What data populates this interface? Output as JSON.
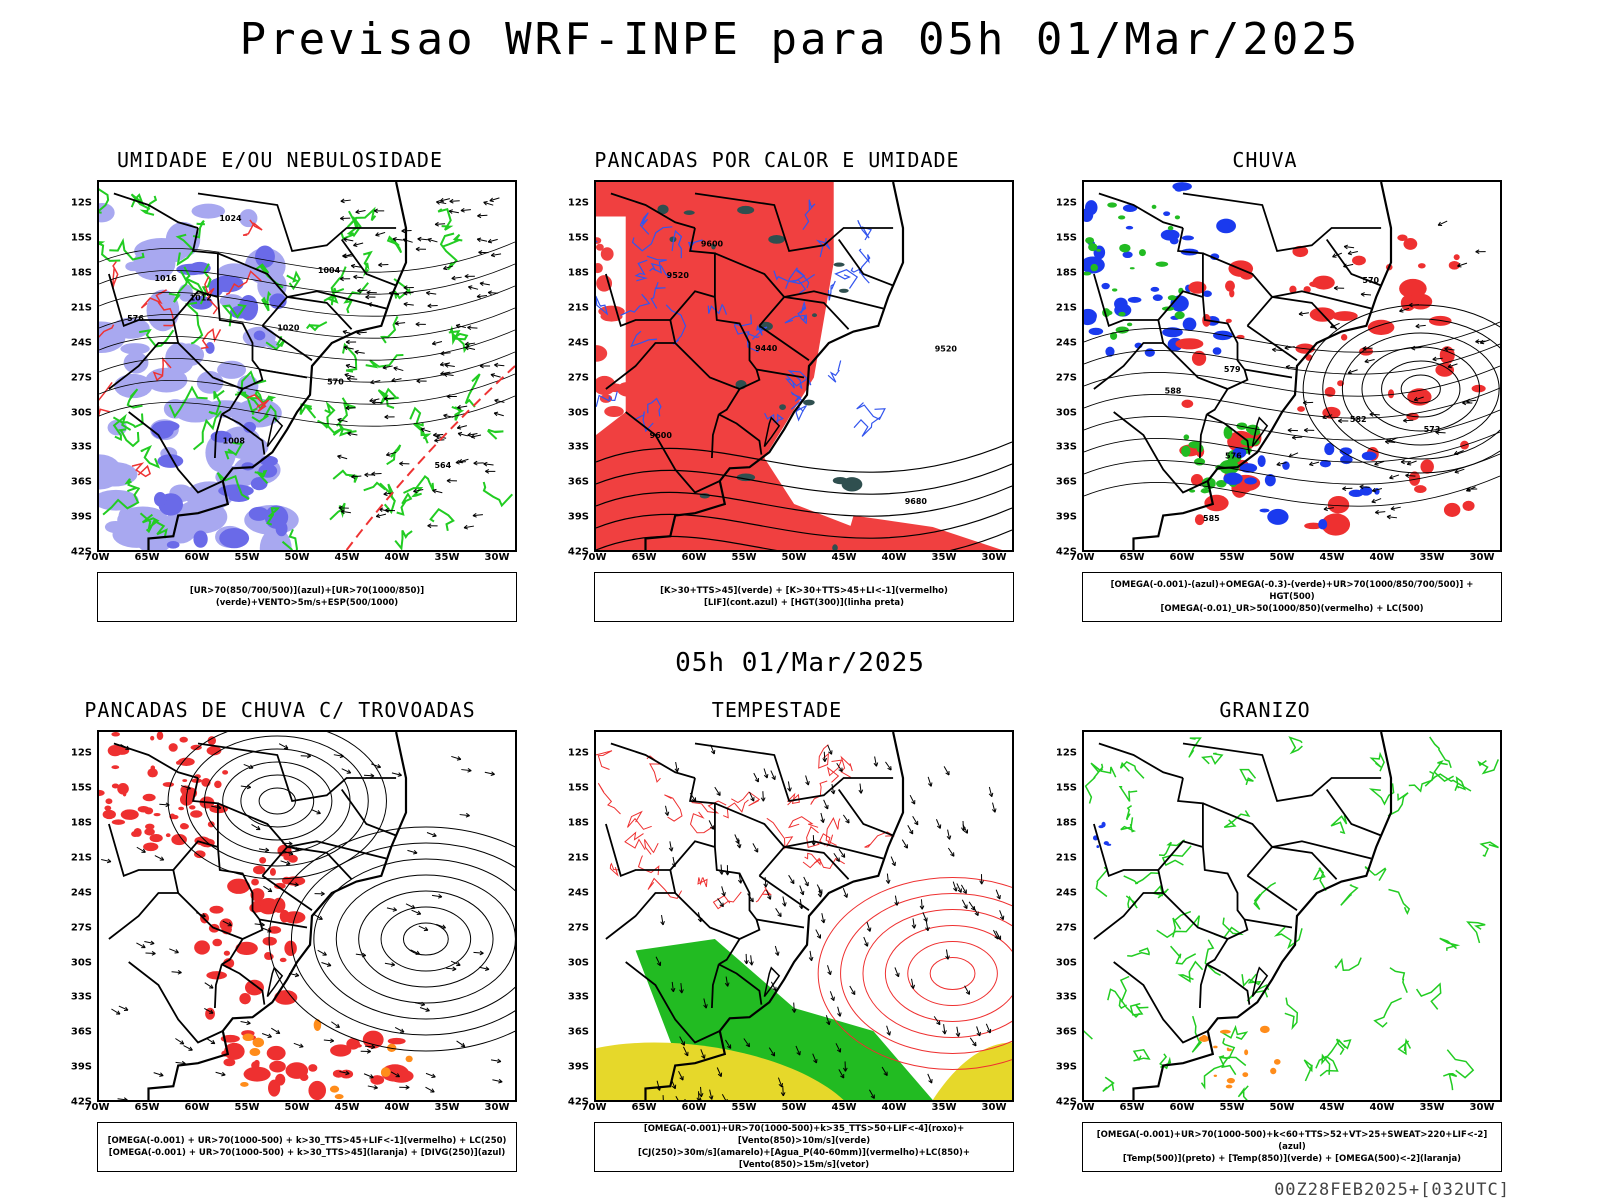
{
  "title": "Previsao WRF-INPE  para 05h 01/Mar/2025",
  "mid_title": "05h 01/Mar/2025",
  "footer": "00Z28FEB2025+[032UTC]",
  "lat_ticks": [
    "12S",
    "15S",
    "18S",
    "21S",
    "24S",
    "27S",
    "30S",
    "33S",
    "36S",
    "39S",
    "42S"
  ],
  "lon_ticks": [
    "70W",
    "65W",
    "60W",
    "55W",
    "50W",
    "45W",
    "40W",
    "35W",
    "30W"
  ],
  "panels": [
    {
      "title": "UMIDADE E/OU NEBULOSIDADE",
      "legend": [
        "[UR>70(850/700/500)](azul)+[UR>70(1000/850)](verde)+VENTO>5m/s+ESP(500/1000)"
      ],
      "labels": [
        "1012",
        "1016",
        "1020",
        "1024",
        "1008",
        "1004",
        "576",
        "570",
        "564"
      ]
    },
    {
      "title": "PANCADAS POR CALOR E UMIDADE",
      "legend": [
        "[K>30+TTS>45](verde) + [K>30+TTS>45+LI<-1](vermelho)",
        "[LIF](cont.azul) + [HGT(300)](linha preta)"
      ],
      "labels": [
        "9600",
        "9520",
        "9440",
        "9680",
        "9600",
        "9520"
      ]
    },
    {
      "title": "CHUVA",
      "legend": [
        "[OMEGA(-0.001)-(azul)+OMEGA(-0.3)-(verde)+UR>70(1000/850/700/500)] + HGT(500)",
        "[OMEGA(-0.01)_UR>50(1000/850)(vermelho) + LC(500)"
      ],
      "labels": [
        "585",
        "582",
        "579",
        "576",
        "573",
        "570",
        "588"
      ]
    },
    {
      "title": "PANCADAS DE CHUVA C/ TROVOADAS",
      "legend": [
        "[OMEGA(-0.001) + UR>70(1000-500) + k>30_TTS>45+LIF<-1](vermelho) + LC(250)",
        "[OMEGA(-0.001) + UR>70(1000-500) + k>30_TTS>45](laranja) + [DIVG(250)](azul)"
      ],
      "labels": []
    },
    {
      "title": "TEMPESTADE",
      "legend": [
        "[OMEGA(-0.001)+UR>70(1000-500)+k>35_TTS>50+LIF<-4](roxo)+[Vento(850)>10m/s](verde)",
        "[CJ(250)>30m/s](amarelo)+[Agua_P(40-60mm)](vermelho)+LC(850)+[Vento(850)>15m/s](vetor)"
      ],
      "labels": []
    },
    {
      "title": "GRANIZO",
      "legend": [
        "[OMEGA(-0.001)+UR>70(1000-500)+k<60+TTS>52+VT>25+SWEAT>220+LIF<-2](azul)",
        "[Temp(500)](preto) + [Temp(850)](verde) + [OMEGA(500)<-2](laranja)"
      ],
      "labels": []
    }
  ]
}
